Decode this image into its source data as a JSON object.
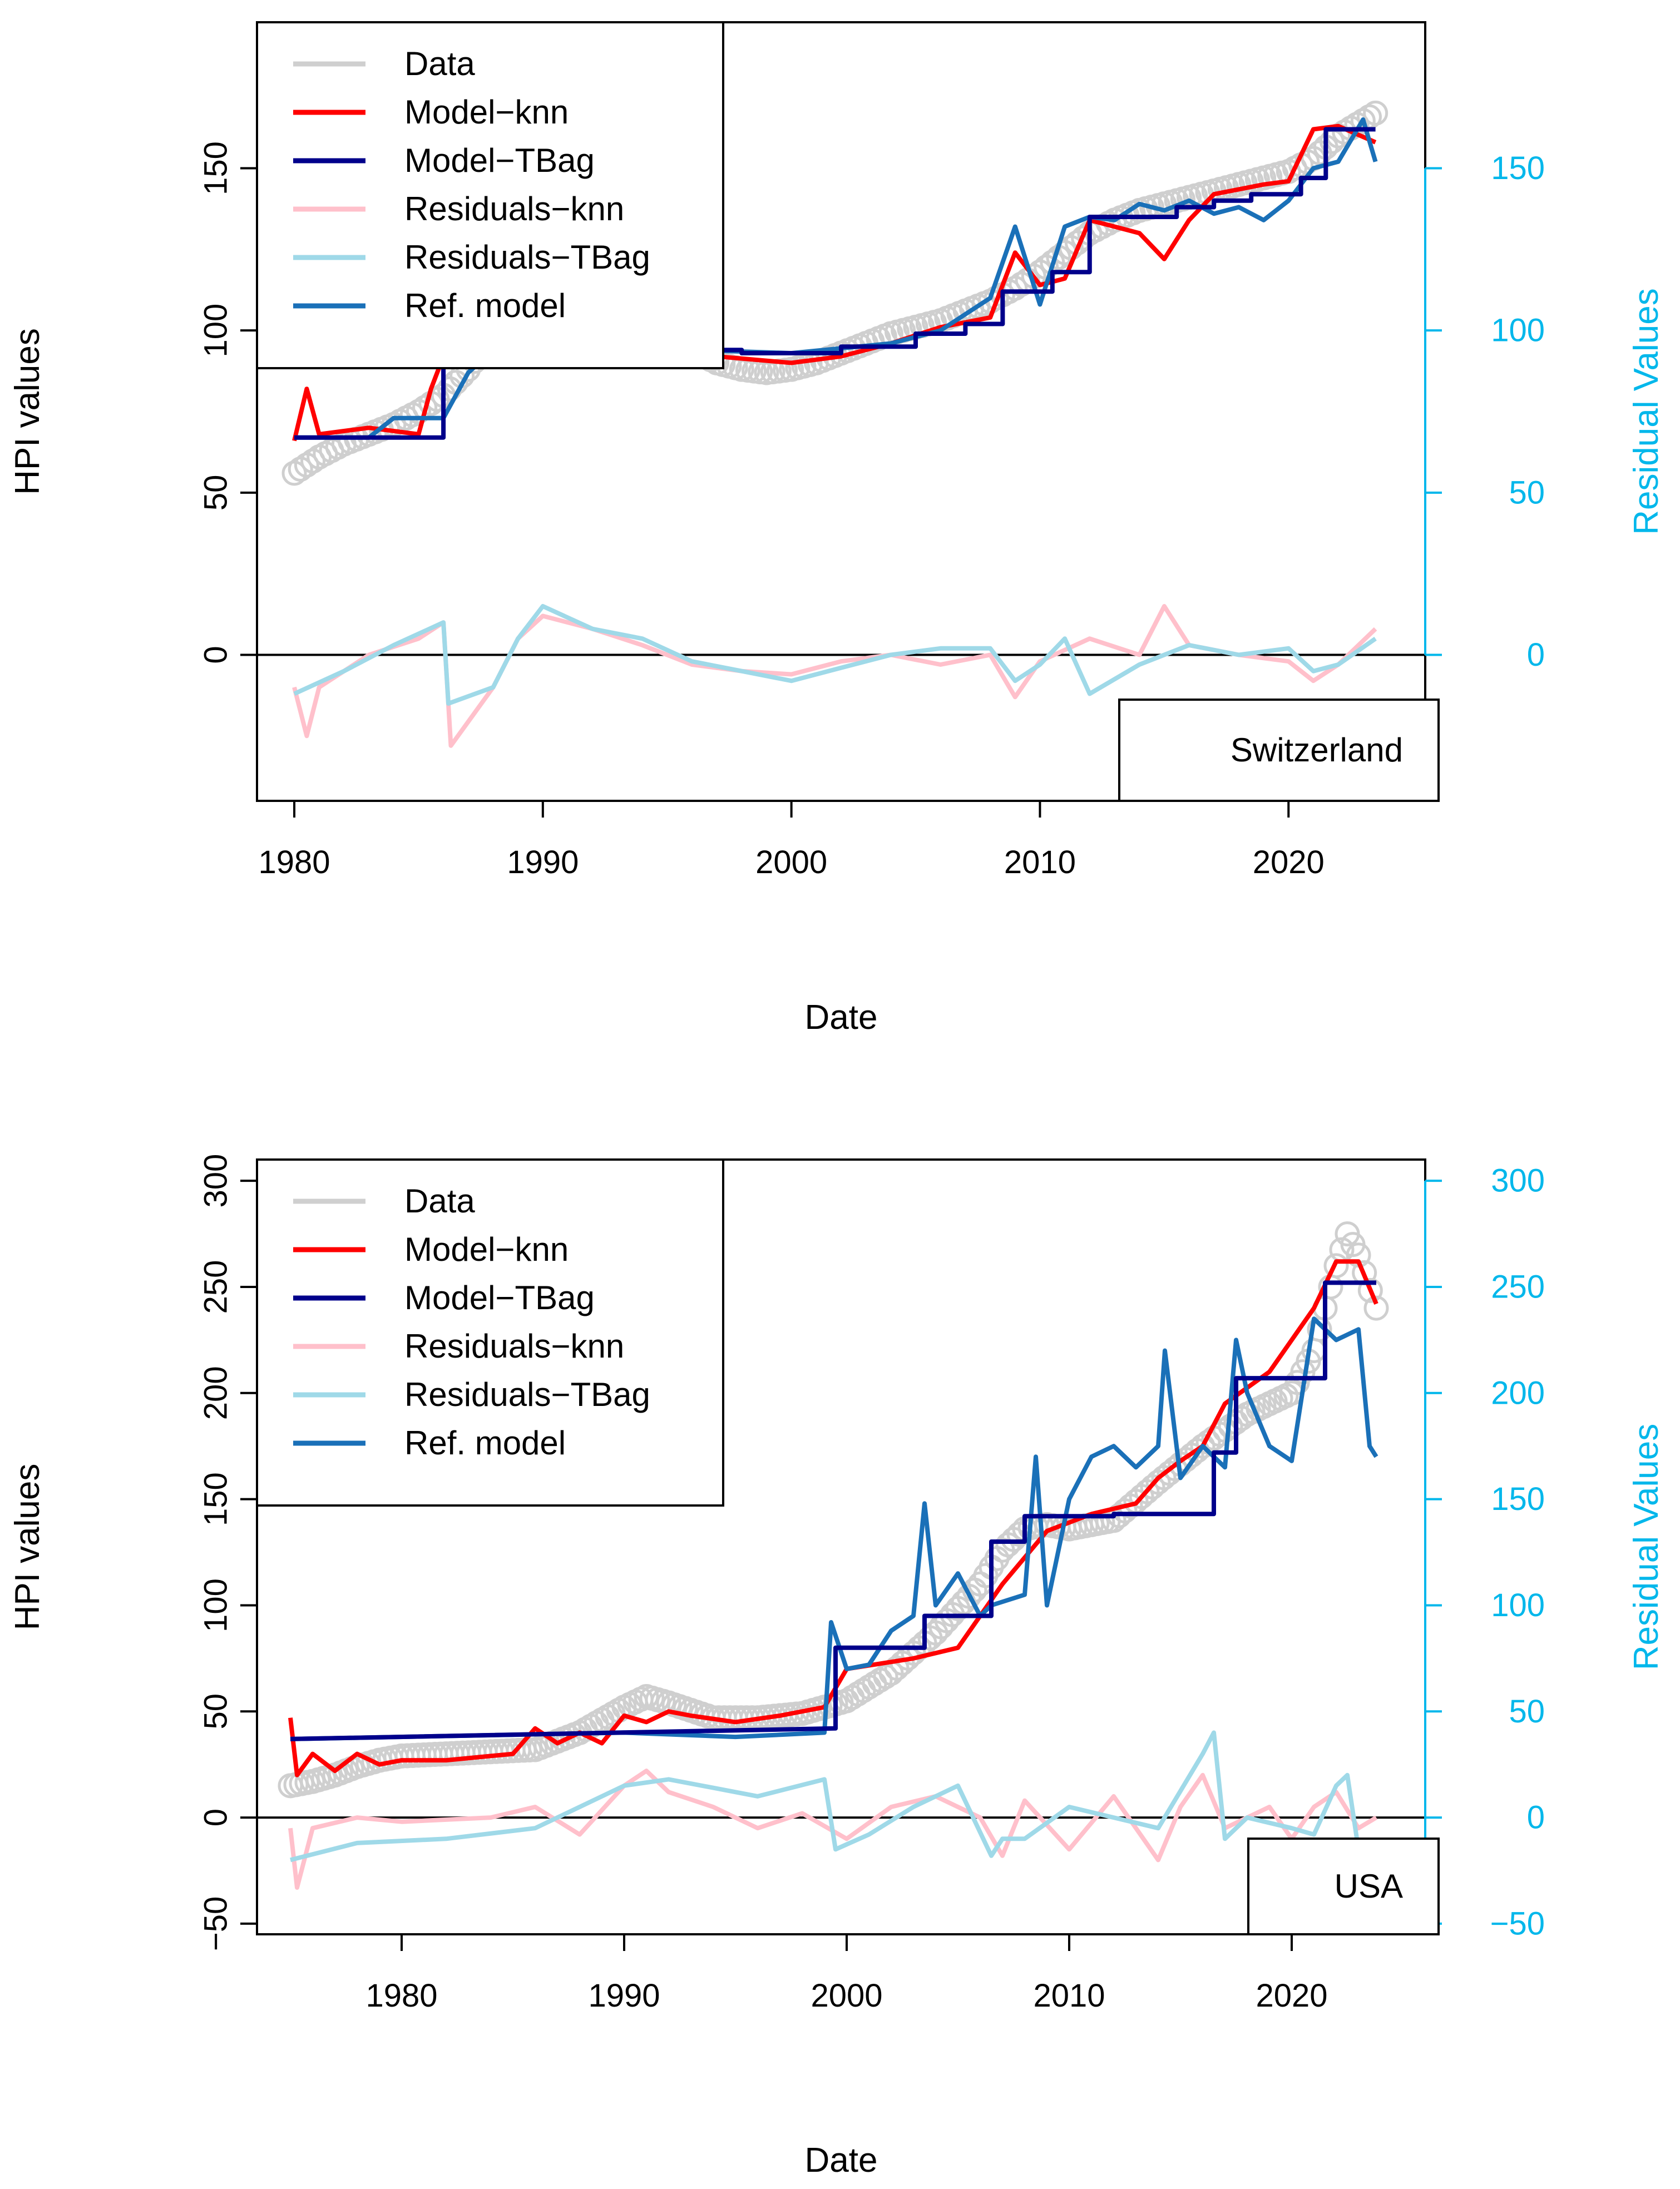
{
  "colors": {
    "data": "#cfcfcf",
    "model_knn": "#ff0000",
    "model_tbag": "#00008b",
    "residuals_knn": "#ffc0cb",
    "residuals_tbag": "#9fd9e8",
    "ref_model": "#1a70b8",
    "residual_axis": "#00b7eb",
    "axis": "#000000"
  },
  "chart_data": [
    {
      "type": "line",
      "country": "Switzerland",
      "xlabel": "Date",
      "ylabel": "HPI values",
      "ylabel_right": "Residual Values",
      "xlim": [
        1978.5,
        2025.5
      ],
      "ylim": [
        -45,
        195
      ],
      "xticks": [
        1980,
        1990,
        2000,
        2010,
        2020
      ],
      "xtick_labels": [
        "1980",
        "1990",
        "2000",
        "2010",
        "2020"
      ],
      "yticks": [
        0,
        50,
        100,
        150
      ],
      "ytick_labels": [
        "0",
        "50",
        "100",
        "150"
      ],
      "yticks_right": [
        0,
        50,
        100,
        150
      ],
      "ytick_labels_right": [
        "0",
        "50",
        "100",
        "150"
      ],
      "legend": [
        "Data",
        "Model−knn",
        "Model−TBag",
        "Residuals−knn",
        "Residuals−TBag",
        "Ref. model"
      ],
      "series": [
        {
          "name": "Data",
          "style": "circles",
          "x": [
            1980,
            1981,
            1982,
            1983,
            1984,
            1985,
            1986,
            1987,
            1988,
            1989,
            1990,
            1991,
            1992,
            1993,
            1994,
            1995,
            1996,
            1997,
            1998,
            1999,
            2000,
            2001,
            2002,
            2003,
            2004,
            2005,
            2006,
            2007,
            2008,
            2009,
            2010,
            2011,
            2012,
            2013,
            2014,
            2015,
            2016,
            2017,
            2018,
            2019,
            2020,
            2021,
            2022,
            2023.5
          ],
          "y": [
            56,
            61,
            65,
            68,
            71,
            75,
            80,
            88,
            98,
            108,
            112,
            111,
            105,
            100,
            98,
            96,
            94,
            90,
            88,
            87,
            88,
            90,
            93,
            96,
            99,
            101,
            103,
            106,
            109,
            113,
            118,
            124,
            130,
            134,
            137,
            139,
            141,
            143,
            145,
            147,
            149,
            153,
            160,
            167
          ]
        },
        {
          "name": "Model−knn",
          "x": [
            1980,
            1980.5,
            1981,
            1983,
            1985,
            1985.5,
            1986,
            1987,
            1989,
            1991,
            1993,
            1995,
            1997,
            2000,
            2002,
            2004,
            2006,
            2008,
            2009,
            2010,
            2011,
            2012,
            2014,
            2015,
            2016,
            2017,
            2019,
            2020,
            2021,
            2022,
            2023.5
          ],
          "y": [
            66,
            82,
            68,
            70,
            68,
            82,
            92,
            96,
            108,
            104,
            96,
            96,
            92,
            90,
            92,
            96,
            101,
            104,
            124,
            114,
            116,
            134,
            130,
            122,
            134,
            142,
            145,
            146,
            162,
            163,
            158
          ]
        },
        {
          "name": "Model−TBag",
          "x": [
            1980,
            1986,
            1986,
            1988,
            1988,
            1990,
            1990,
            1992,
            1992,
            1994,
            1994,
            1998,
            1998,
            2002,
            2002,
            2005,
            2005,
            2007,
            2007,
            2008.5,
            2008.5,
            2010.5,
            2010.5,
            2012,
            2012,
            2015.5,
            2015.5,
            2017,
            2017,
            2018.5,
            2018.5,
            2020.5,
            2020.5,
            2021.5,
            2021.5,
            2023.5
          ],
          "y": [
            67,
            67,
            94,
            94,
            100,
            100,
            106,
            106,
            100,
            100,
            94,
            94,
            93,
            93,
            95,
            95,
            99,
            99,
            102,
            102,
            112,
            112,
            118,
            118,
            135,
            135,
            138,
            138,
            140,
            140,
            142,
            142,
            147,
            147,
            162,
            162
          ]
        },
        {
          "name": "Ref. model",
          "x": [
            1980,
            1983,
            1984,
            1986,
            1987,
            1988,
            1990,
            1993,
            1996,
            2000,
            2004,
            2006,
            2008,
            2009,
            2010,
            2011,
            2012,
            2013,
            2014,
            2015,
            2016,
            2017,
            2018,
            2019,
            2020,
            2021,
            2022,
            2023,
            2023.5
          ],
          "y": [
            67,
            67,
            73,
            73,
            87,
            94,
            104,
            96,
            94,
            93,
            96,
            100,
            110,
            132,
            108,
            132,
            135,
            134,
            139,
            137,
            140,
            136,
            138,
            134,
            140,
            150,
            152,
            165,
            152
          ]
        },
        {
          "name": "Residuals−knn",
          "x": [
            1980,
            1980.5,
            1981,
            1983,
            1985,
            1986,
            1986.3,
            1988,
            1989,
            1990,
            1992,
            1994,
            1996,
            1998,
            2000,
            2002,
            2004,
            2006,
            2008,
            2009,
            2010,
            2012,
            2014,
            2015,
            2016,
            2018,
            2020,
            2021,
            2022,
            2023.5
          ],
          "y": [
            -10,
            -25,
            -10,
            0,
            5,
            10,
            -28,
            -10,
            5,
            12,
            8,
            3,
            -3,
            -5,
            -6,
            -2,
            0,
            -3,
            0,
            -13,
            -2,
            5,
            0,
            15,
            3,
            0,
            -2,
            -8,
            -3,
            8
          ]
        },
        {
          "name": "Residuals−TBag",
          "x": [
            1980,
            1982,
            1984,
            1986,
            1986.2,
            1988,
            1989,
            1990,
            1992,
            1994,
            1996,
            1998,
            2000,
            2002,
            2004,
            2006,
            2008,
            2009,
            2010,
            2011,
            2012,
            2014,
            2016,
            2018,
            2020,
            2021,
            2022,
            2023.5
          ],
          "y": [
            -12,
            -5,
            3,
            10,
            -15,
            -10,
            5,
            15,
            8,
            5,
            -2,
            -5,
            -8,
            -4,
            0,
            2,
            2,
            -8,
            -3,
            5,
            -12,
            -3,
            3,
            0,
            2,
            -5,
            -3,
            5
          ]
        }
      ]
    },
    {
      "type": "line",
      "country": "USA",
      "xlabel": "Date",
      "ylabel": "HPI values",
      "ylabel_right": "Residual Values",
      "xlim": [
        1973.5,
        2026
      ],
      "ylim": [
        -55,
        310
      ],
      "xticks": [
        1980,
        1990,
        2000,
        2010,
        2020
      ],
      "xtick_labels": [
        "1980",
        "1990",
        "2000",
        "2010",
        "2020"
      ],
      "yticks": [
        -50,
        0,
        50,
        100,
        150,
        200,
        250,
        300
      ],
      "ytick_labels": [
        "−50",
        "0",
        "50",
        "100",
        "150",
        "200",
        "250",
        "300"
      ],
      "yticks_right": [
        -50,
        0,
        50,
        100,
        150,
        200,
        250,
        300
      ],
      "ytick_labels_right": [
        "−50",
        "0",
        "50",
        "100",
        "150",
        "200",
        "250",
        "300"
      ],
      "legend": [
        "Data",
        "Model−knn",
        "Model−TBag",
        "Residuals−knn",
        "Residuals−TBag",
        "Ref. model"
      ],
      "series": [
        {
          "name": "Data",
          "style": "circles",
          "x": [
            1975,
            1976,
            1977,
            1978,
            1979,
            1980,
            1982,
            1984,
            1986,
            1988,
            1990,
            1991,
            1992,
            1994,
            1996,
            1998,
            2000,
            2002,
            2004,
            2006,
            2007,
            2008,
            2009,
            2010,
            2012,
            2014,
            2016,
            2018,
            2020,
            2021,
            2022,
            2022.5,
            2023,
            2023.8
          ],
          "y": [
            15,
            17,
            20,
            24,
            27,
            29,
            30,
            31,
            32,
            40,
            52,
            57,
            54,
            47,
            47,
            49,
            55,
            68,
            87,
            110,
            126,
            136,
            138,
            136,
            140,
            158,
            175,
            190,
            200,
            220,
            260,
            275,
            265,
            240
          ]
        },
        {
          "name": "Model−knn",
          "x": [
            1975,
            1975.3,
            1976,
            1977,
            1978,
            1979,
            1980,
            1982,
            1985,
            1986,
            1987,
            1988,
            1989,
            1990,
            1991,
            1992,
            1993,
            1995,
            1997,
            1999,
            2000,
            2003,
            2005,
            2006,
            2007,
            2009,
            2011,
            2013,
            2014,
            2015,
            2016,
            2017,
            2019,
            2021,
            2022,
            2023,
            2023.8
          ],
          "y": [
            47,
            20,
            30,
            22,
            30,
            25,
            27,
            27,
            30,
            42,
            35,
            40,
            35,
            48,
            45,
            50,
            48,
            45,
            48,
            52,
            70,
            75,
            80,
            95,
            110,
            135,
            143,
            148,
            160,
            168,
            175,
            195,
            210,
            240,
            262,
            262,
            242
          ]
        },
        {
          "name": "Model−TBag",
          "x": [
            1975,
            1999.5,
            1999.5,
            2003.5,
            2003.5,
            2006.5,
            2006.5,
            2008,
            2008,
            2012,
            2012,
            2016.5,
            2016.5,
            2017.5,
            2017.5,
            2021.5,
            2021.5,
            2023.8
          ],
          "y": [
            37,
            42,
            80,
            80,
            95,
            95,
            130,
            130,
            142,
            142,
            143,
            143,
            172,
            172,
            207,
            207,
            252,
            252
          ]
        },
        {
          "name": "Ref. model",
          "x": [
            1975,
            1990,
            1995,
            1999,
            1999.3,
            2000,
            2001,
            2002,
            2003,
            2003.5,
            2004,
            2005,
            2006,
            2006.5,
            2008,
            2008.5,
            2009,
            2010,
            2011,
            2012,
            2013,
            2014,
            2014.3,
            2015,
            2016,
            2017,
            2017.5,
            2018,
            2019,
            2020,
            2021,
            2022,
            2023,
            2023.5,
            2023.8
          ],
          "y": [
            37,
            40,
            38,
            40,
            92,
            70,
            72,
            88,
            95,
            148,
            100,
            115,
            95,
            100,
            105,
            170,
            100,
            150,
            170,
            175,
            165,
            175,
            220,
            160,
            175,
            165,
            225,
            200,
            175,
            168,
            235,
            225,
            230,
            175,
            170
          ]
        },
        {
          "name": "Residuals−knn",
          "x": [
            1975,
            1975.3,
            1976,
            1978,
            1980,
            1984,
            1986,
            1988,
            1990,
            1991,
            1992,
            1994,
            1996,
            1998,
            2000,
            2002,
            2004,
            2006,
            2007,
            2008,
            2010,
            2012,
            2014,
            2015,
            2016,
            2017,
            2019,
            2020,
            2021,
            2022,
            2023,
            2023.8
          ],
          "y": [
            -5,
            -33,
            -5,
            0,
            -2,
            0,
            5,
            -8,
            15,
            22,
            12,
            5,
            -5,
            2,
            -10,
            5,
            10,
            0,
            -18,
            8,
            -15,
            10,
            -20,
            5,
            20,
            -5,
            5,
            -10,
            5,
            12,
            -5,
            0
          ]
        },
        {
          "name": "Residuals−TBag",
          "x": [
            1975,
            1978,
            1982,
            1986,
            1988,
            1990,
            1992,
            1996,
            1999,
            1999.5,
            2001,
            2003,
            2005,
            2006.5,
            2007,
            2008,
            2010,
            2012,
            2014,
            2016,
            2016.5,
            2017,
            2018,
            2020,
            2021,
            2022,
            2022.5,
            2023,
            2023.8
          ],
          "y": [
            -20,
            -12,
            -10,
            -5,
            5,
            15,
            18,
            10,
            18,
            -15,
            -8,
            5,
            15,
            -18,
            -10,
            -10,
            5,
            0,
            -5,
            30,
            40,
            -10,
            0,
            -5,
            -8,
            15,
            20,
            -15,
            -12
          ]
        }
      ]
    }
  ]
}
